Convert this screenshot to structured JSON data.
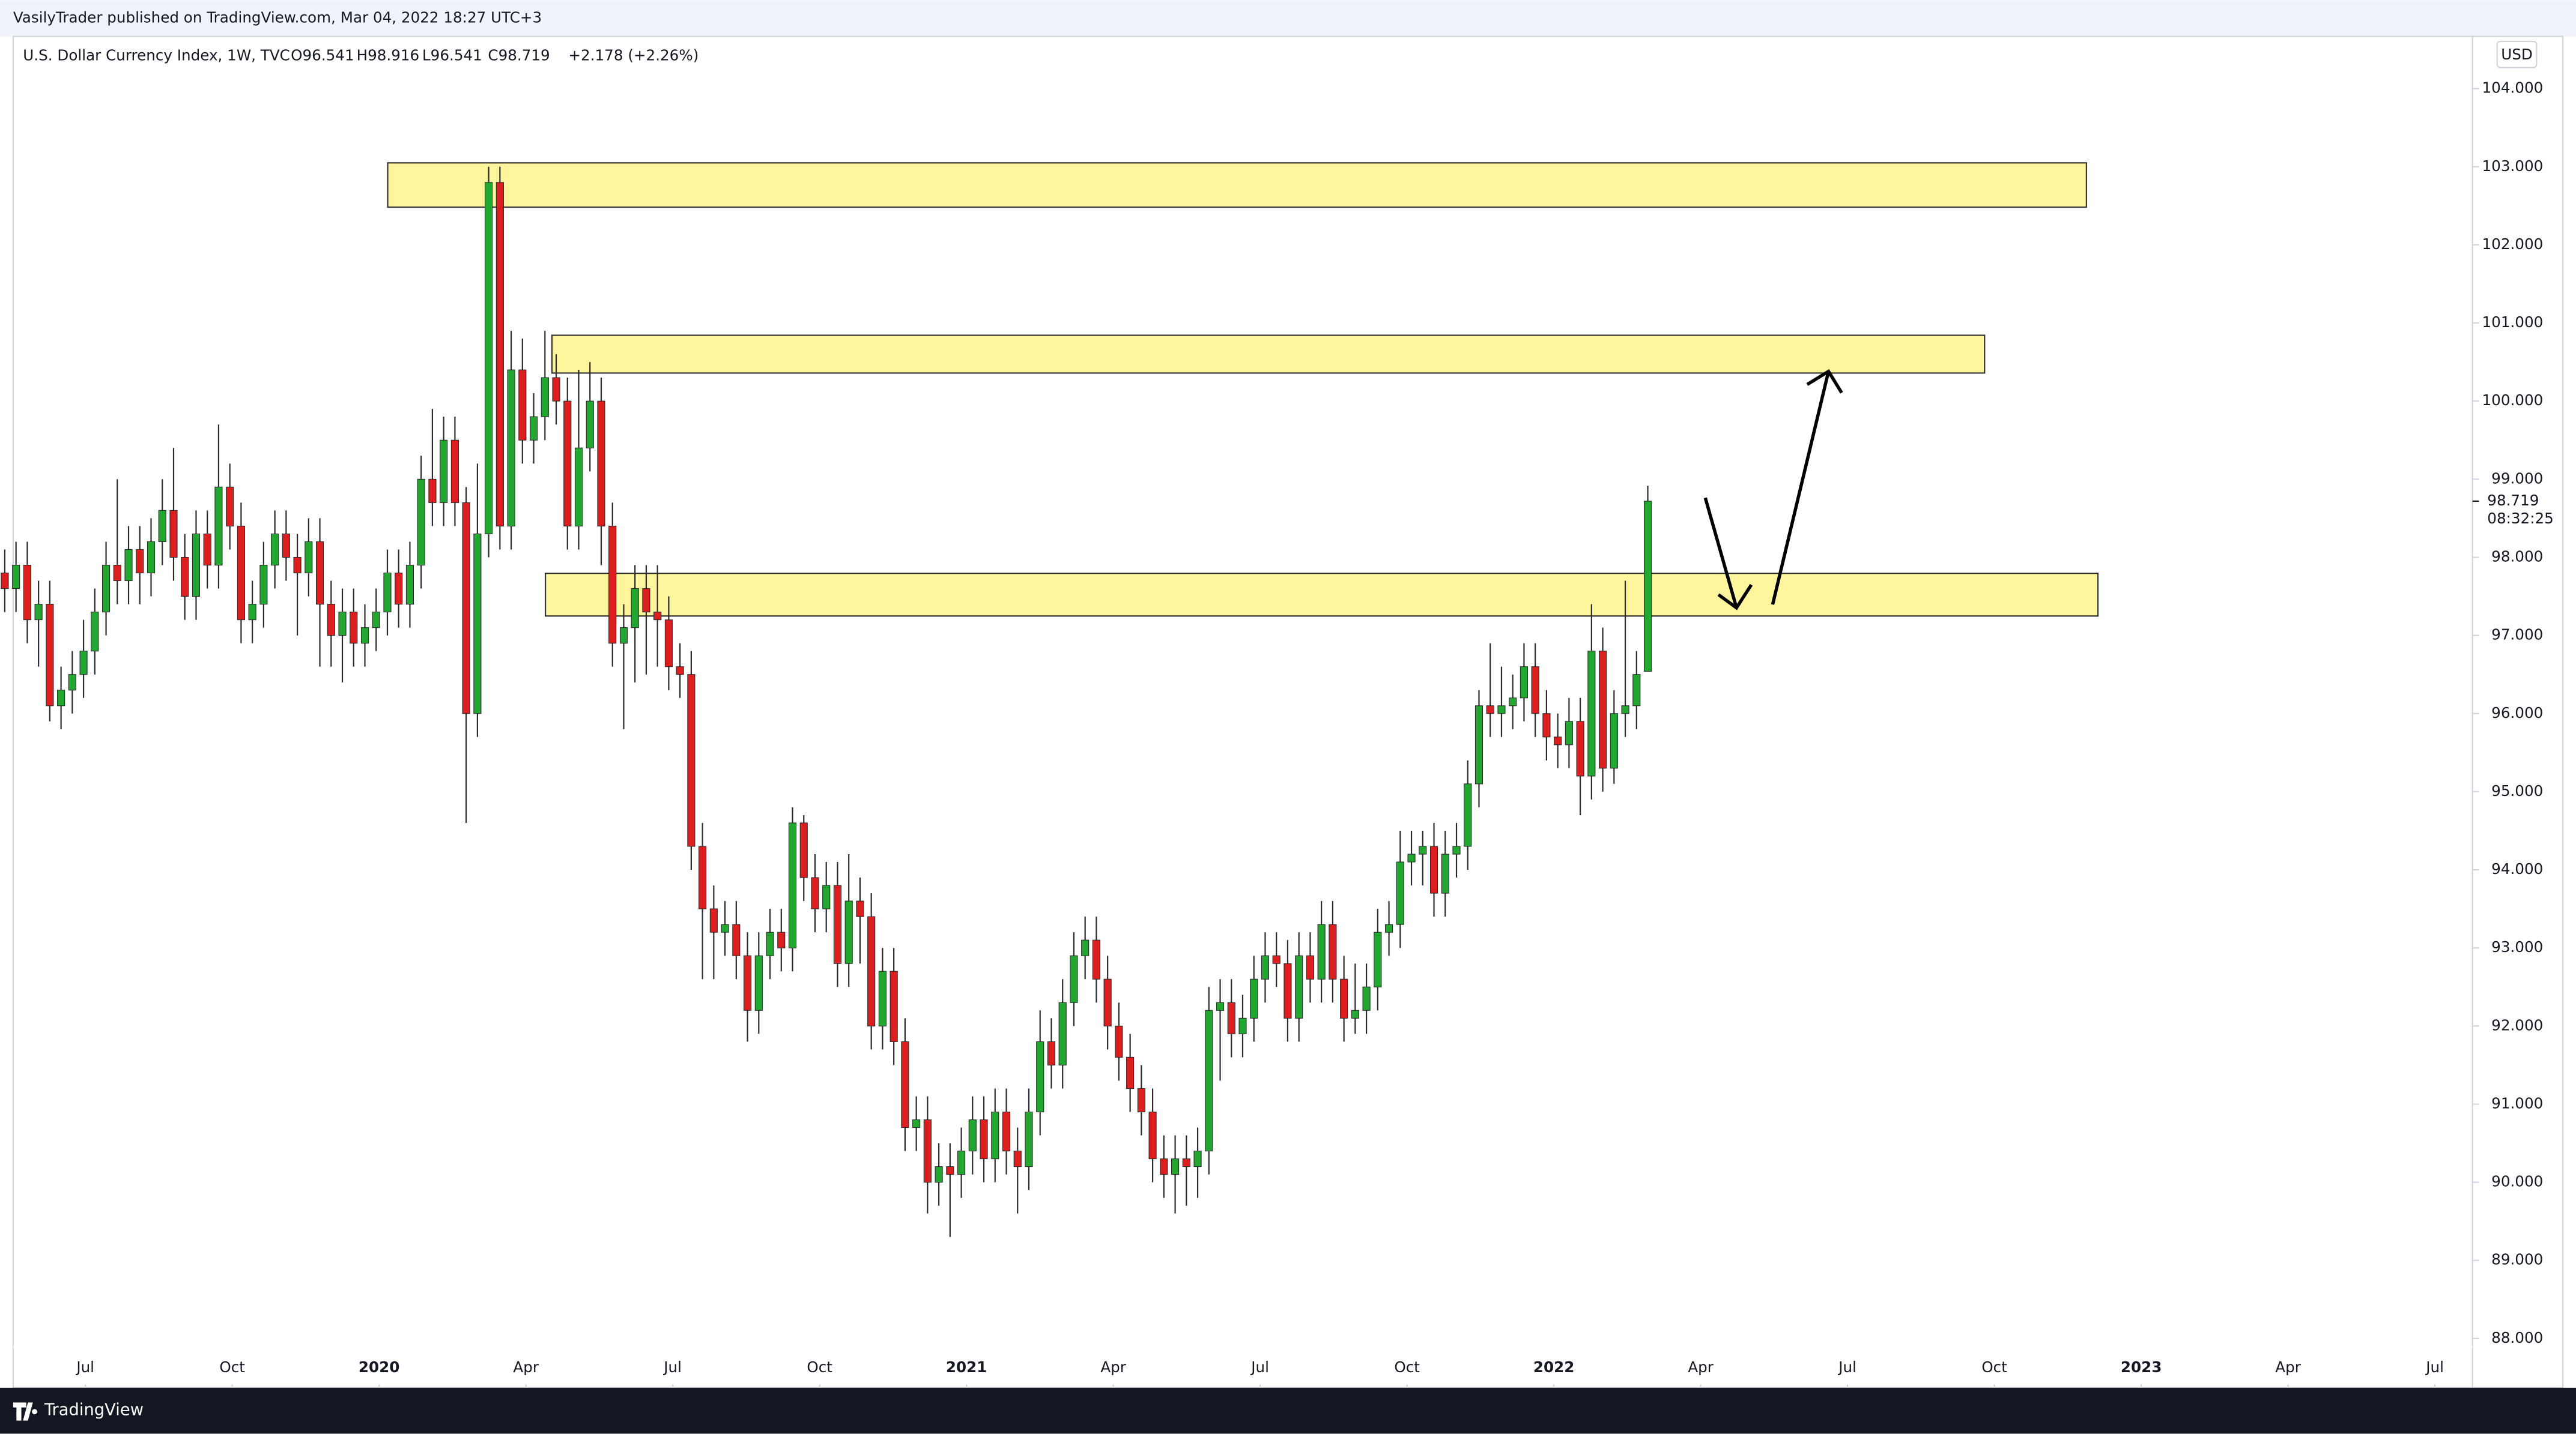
{
  "header": {
    "text": "VasilyTrader published on TradingView.com, Mar 04, 2022 18:27 UTC+3"
  },
  "footer": {
    "brand": "TradingView"
  },
  "chart_data": {
    "type": "candlestick",
    "title": "U.S. Dollar Currency Index, 1W, TVC",
    "legend_values": [
      "O96.541",
      "H98.916",
      "L96.541",
      "C98.719",
      "+2.178 (+2.26%)"
    ],
    "currency": "USD",
    "countdown": "08:32:25",
    "up_color": "#22a831",
    "down_color": "#dd1e1e",
    "wick_color": "#2a2a2a",
    "ylim": [
      87.37,
      104.71
    ],
    "yticks": [
      {
        "value": 88,
        "label": "88.000"
      },
      {
        "value": 89,
        "label": "89.000"
      },
      {
        "value": 90,
        "label": "90.000"
      },
      {
        "value": 91,
        "label": "91.000"
      },
      {
        "value": 92,
        "label": "92.000"
      },
      {
        "value": 93,
        "label": "93.000"
      },
      {
        "value": 94,
        "label": "94.000"
      },
      {
        "value": 95,
        "label": "95.000"
      },
      {
        "value": 96,
        "label": "96.000"
      },
      {
        "value": 97,
        "label": "97.000"
      },
      {
        "value": 98,
        "label": "98.000"
      },
      {
        "value": 99,
        "label": "99.000"
      },
      {
        "value": 100,
        "label": "100.000"
      },
      {
        "value": 101,
        "label": "101.000"
      },
      {
        "value": 102,
        "label": "102.000"
      },
      {
        "value": 103,
        "label": "103.000"
      },
      {
        "value": 104,
        "label": "104.000"
      }
    ],
    "xlim": [
      2019.377,
      2023.564
    ],
    "xticks": [
      {
        "value": 2019.5,
        "label": "Jul"
      },
      {
        "value": 2019.75,
        "label": "Oct"
      },
      2020,
      {
        "value": 2020.25,
        "label": "Apr"
      },
      {
        "value": 2020.5,
        "label": "Jul"
      },
      {
        "value": 2020.75,
        "label": "Oct"
      },
      2021,
      {
        "value": 2021.25,
        "label": "Apr"
      },
      {
        "value": 2021.5,
        "label": "Jul"
      },
      {
        "value": 2021.75,
        "label": "Oct"
      },
      2022,
      {
        "value": 2022.25,
        "label": "Apr"
      },
      {
        "value": 2022.5,
        "label": "Jul"
      },
      {
        "value": 2022.75,
        "label": "Oct"
      },
      2023,
      {
        "value": 2023.25,
        "label": "Apr"
      },
      {
        "value": 2023.5,
        "label": "Jul"
      }
    ],
    "open": [
      97.8,
      97.6,
      97.9,
      97.2,
      97.4,
      96.1,
      96.3,
      96.5,
      96.8,
      97.3,
      97.9,
      97.7,
      98.1,
      97.8,
      98.2,
      98.6,
      98.0,
      97.5,
      98.3,
      97.9,
      98.9,
      98.4,
      97.2,
      97.4,
      97.9,
      98.3,
      98.0,
      97.8,
      98.2,
      97.4,
      97.0,
      97.3,
      96.9,
      97.1,
      97.3,
      97.8,
      97.4,
      97.9,
      99.0,
      98.7,
      99.5,
      98.7,
      96.0,
      98.3,
      102.8,
      98.4,
      100.4,
      99.5,
      99.8,
      100.3,
      100.0,
      98.4,
      99.4,
      100.0,
      98.4,
      96.9,
      97.1,
      97.6,
      97.3,
      97.2,
      96.6,
      96.5,
      94.3,
      93.5,
      93.2,
      93.3,
      92.9,
      92.2,
      92.9,
      93.2,
      93.0,
      94.6,
      93.9,
      93.5,
      93.8,
      92.8,
      93.6,
      93.4,
      92.0,
      92.7,
      91.8,
      90.7,
      90.8,
      90.0,
      90.2,
      90.1,
      90.4,
      90.8,
      90.3,
      90.9,
      90.4,
      90.2,
      90.9,
      91.8,
      91.5,
      92.3,
      92.9,
      93.1,
      92.6,
      92.0,
      91.6,
      91.2,
      90.9,
      90.3,
      90.1,
      90.3,
      90.2,
      90.4,
      92.2,
      92.3,
      91.9,
      92.1,
      92.6,
      92.9,
      92.8,
      92.1,
      92.9,
      92.6,
      93.3,
      92.6,
      92.1,
      92.2,
      92.5,
      93.2,
      93.3,
      94.1,
      94.2,
      94.3,
      93.7,
      94.2,
      94.3,
      95.1,
      96.1,
      96.0,
      96.1,
      96.2,
      96.6,
      96.0,
      95.7,
      95.6,
      95.9,
      95.2,
      96.8,
      95.3,
      96.0,
      96.1,
      96.541
    ],
    "high": [
      98.1,
      98.2,
      98.2,
      97.7,
      97.7,
      96.6,
      96.8,
      97.2,
      97.6,
      98.2,
      99.0,
      98.4,
      98.4,
      98.5,
      99.0,
      99.4,
      98.3,
      98.6,
      98.6,
      99.7,
      99.2,
      98.7,
      97.7,
      98.2,
      98.6,
      98.6,
      98.3,
      98.5,
      98.5,
      97.7,
      97.6,
      97.6,
      97.4,
      97.6,
      98.1,
      98.1,
      98.2,
      99.3,
      99.9,
      99.8,
      99.8,
      98.9,
      99.2,
      103.0,
      103.0,
      100.9,
      100.8,
      100.1,
      100.9,
      100.6,
      100.3,
      100.4,
      100.5,
      100.3,
      98.7,
      97.4,
      97.9,
      97.9,
      97.9,
      97.5,
      96.9,
      96.8,
      94.6,
      93.8,
      93.6,
      93.6,
      93.2,
      93.2,
      93.5,
      93.5,
      94.8,
      94.7,
      94.2,
      94.1,
      94.1,
      94.2,
      93.9,
      93.7,
      93.0,
      93.0,
      92.1,
      91.1,
      91.1,
      90.5,
      90.5,
      90.7,
      91.1,
      91.1,
      91.2,
      91.2,
      90.7,
      91.2,
      92.2,
      92.1,
      92.6,
      93.2,
      93.4,
      93.4,
      92.9,
      92.3,
      91.9,
      91.5,
      91.2,
      90.6,
      90.6,
      90.6,
      90.7,
      92.5,
      92.6,
      92.6,
      92.4,
      92.9,
      93.2,
      93.2,
      93.1,
      93.2,
      93.2,
      93.6,
      93.6,
      92.9,
      92.8,
      92.8,
      93.5,
      93.6,
      94.5,
      94.5,
      94.5,
      94.6,
      94.5,
      94.6,
      95.4,
      96.3,
      96.9,
      96.6,
      96.5,
      96.9,
      96.9,
      96.3,
      96.0,
      96.2,
      96.2,
      97.4,
      97.1,
      96.3,
      97.7,
      96.8,
      98.916
    ],
    "low": [
      97.3,
      97.3,
      96.9,
      96.6,
      95.9,
      95.8,
      96.0,
      96.2,
      96.5,
      97.0,
      97.4,
      97.4,
      97.4,
      97.5,
      97.9,
      97.7,
      97.2,
      97.2,
      97.6,
      97.6,
      98.1,
      96.9,
      96.9,
      97.1,
      97.6,
      97.7,
      97.0,
      97.5,
      96.6,
      96.6,
      96.4,
      96.6,
      96.6,
      96.8,
      97.0,
      97.1,
      97.1,
      97.6,
      98.4,
      98.4,
      98.4,
      94.6,
      95.7,
      98.0,
      98.1,
      98.1,
      99.2,
      99.2,
      99.5,
      99.7,
      98.1,
      98.1,
      99.1,
      97.9,
      96.6,
      95.8,
      96.4,
      96.5,
      96.6,
      96.3,
      96.2,
      94.0,
      92.6,
      92.6,
      92.9,
      92.6,
      91.8,
      91.9,
      92.6,
      92.7,
      92.7,
      93.6,
      93.2,
      93.2,
      92.5,
      92.5,
      92.8,
      91.7,
      91.7,
      91.5,
      90.4,
      90.4,
      89.6,
      89.7,
      89.3,
      89.8,
      90.1,
      90.0,
      90.0,
      90.1,
      89.6,
      89.9,
      90.6,
      91.2,
      91.2,
      92.0,
      92.6,
      92.3,
      91.7,
      91.3,
      90.9,
      90.6,
      90.0,
      89.8,
      89.6,
      89.7,
      89.8,
      90.1,
      91.3,
      91.6,
      91.6,
      91.8,
      92.3,
      92.5,
      91.8,
      91.8,
      92.3,
      92.3,
      92.3,
      91.8,
      91.9,
      91.9,
      92.2,
      92.9,
      93.0,
      93.8,
      93.8,
      93.4,
      93.4,
      93.9,
      94.0,
      94.8,
      95.7,
      95.7,
      95.8,
      95.9,
      95.7,
      95.4,
      95.3,
      95.3,
      94.7,
      94.9,
      95.0,
      95.1,
      95.7,
      95.8,
      96.541
    ],
    "close": [
      97.6,
      97.9,
      97.2,
      97.4,
      96.1,
      96.3,
      96.5,
      96.8,
      97.3,
      97.9,
      97.7,
      98.1,
      97.8,
      98.2,
      98.6,
      98.0,
      97.5,
      98.3,
      97.9,
      98.9,
      98.4,
      97.2,
      97.4,
      97.9,
      98.3,
      98.0,
      97.8,
      98.2,
      97.4,
      97.0,
      97.3,
      96.9,
      97.1,
      97.3,
      97.8,
      97.4,
      97.9,
      99.0,
      98.7,
      99.5,
      98.7,
      96.0,
      98.3,
      102.8,
      98.4,
      100.4,
      99.5,
      99.8,
      100.3,
      100.0,
      98.4,
      99.4,
      100.0,
      98.4,
      96.9,
      97.1,
      97.6,
      97.3,
      97.2,
      96.6,
      96.5,
      94.3,
      93.5,
      93.2,
      93.3,
      92.9,
      92.2,
      92.9,
      93.2,
      93.0,
      94.6,
      93.9,
      93.5,
      93.8,
      92.8,
      93.6,
      93.4,
      92.0,
      92.7,
      91.8,
      90.7,
      90.8,
      90.0,
      90.2,
      90.1,
      90.4,
      90.8,
      90.3,
      90.9,
      90.4,
      90.2,
      90.9,
      91.8,
      91.5,
      92.3,
      92.9,
      93.1,
      92.6,
      92.0,
      91.6,
      91.2,
      90.9,
      90.3,
      90.1,
      90.3,
      90.2,
      90.4,
      92.2,
      92.3,
      91.9,
      92.1,
      92.6,
      92.9,
      92.8,
      92.1,
      92.9,
      92.6,
      93.3,
      92.6,
      92.1,
      92.2,
      92.5,
      93.2,
      93.3,
      94.1,
      94.2,
      94.3,
      93.7,
      94.2,
      94.3,
      95.1,
      96.1,
      96.0,
      96.1,
      96.2,
      96.6,
      96.0,
      95.7,
      95.6,
      95.9,
      95.2,
      96.8,
      95.3,
      96.0,
      96.1,
      96.5,
      98.719
    ]
  }
}
